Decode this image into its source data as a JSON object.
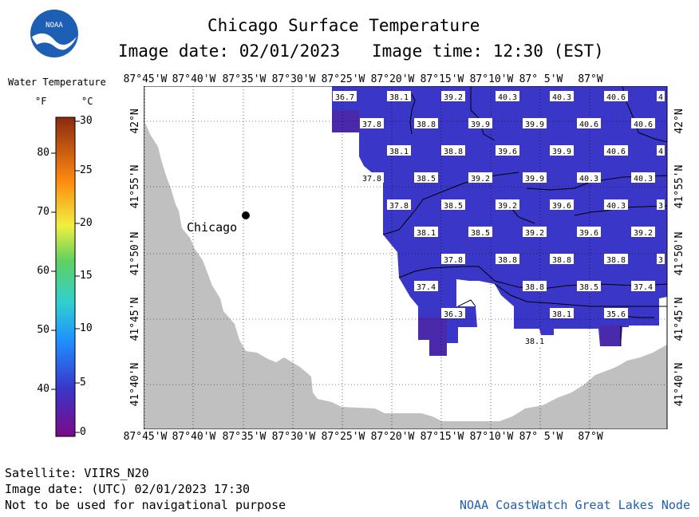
{
  "header": {
    "title": "Chicago Surface Temperature",
    "image_date": "Image date: 02/01/2023",
    "image_time": "Image time: 12:30 (EST)"
  },
  "logo": {
    "text": "NOAA"
  },
  "legend": {
    "title": "Water Temperature",
    "unit_f": "°F",
    "unit_c": "°C",
    "f_ticks": [
      "80",
      "70",
      "60",
      "50",
      "40"
    ],
    "c_ticks": [
      "30",
      "25",
      "20",
      "15",
      "10",
      "5",
      "0"
    ]
  },
  "axes": {
    "lon_labels": [
      "87°45'W",
      "87°40'W",
      "87°35'W",
      "87°30'W",
      "87°25'W",
      "87°20'W",
      "87°15'W",
      "87°10'W",
      "87° 5'W",
      "87°W"
    ],
    "lat_labels": [
      "42°N",
      "41°55'N",
      "41°50'N",
      "41°45'N",
      "41°40'N"
    ]
  },
  "city": {
    "name": "Chicago"
  },
  "colors": {
    "water": "#3a36c8",
    "water_deep": "#4a2aaa",
    "land": "#c0c0c0"
  },
  "temps": [
    {
      "v": "36.7"
    },
    {
      "v": "38.1"
    },
    {
      "v": "39.2"
    },
    {
      "v": "40.3"
    },
    {
      "v": "40.3"
    },
    {
      "v": "40.6"
    },
    {
      "v": "4"
    },
    {
      "v": "37.8"
    },
    {
      "v": "38.8"
    },
    {
      "v": "39.9"
    },
    {
      "v": "39.9"
    },
    {
      "v": "40.6"
    },
    {
      "v": "40.6"
    },
    {
      "v": "38.1"
    },
    {
      "v": "38.8"
    },
    {
      "v": "39.6"
    },
    {
      "v": "39.9"
    },
    {
      "v": "40.6"
    },
    {
      "v": "4"
    },
    {
      "v": "37.8"
    },
    {
      "v": "38.5"
    },
    {
      "v": "39.2"
    },
    {
      "v": "39.9"
    },
    {
      "v": "40.3"
    },
    {
      "v": "40.3"
    },
    {
      "v": "37.8"
    },
    {
      "v": "38.5"
    },
    {
      "v": "39.2"
    },
    {
      "v": "39.6"
    },
    {
      "v": "40.3"
    },
    {
      "v": "3"
    },
    {
      "v": "38.1"
    },
    {
      "v": "38.5"
    },
    {
      "v": "39.2"
    },
    {
      "v": "39.6"
    },
    {
      "v": "39.2"
    },
    {
      "v": "37.8"
    },
    {
      "v": "38.8"
    },
    {
      "v": "38.8"
    },
    {
      "v": "38.8"
    },
    {
      "v": "3"
    },
    {
      "v": "37.4"
    },
    {
      "v": "38.8"
    },
    {
      "v": "38.5"
    },
    {
      "v": "37.4"
    },
    {
      "v": "36.3"
    },
    {
      "v": "38.1"
    },
    {
      "v": "35.6"
    },
    {
      "v": "38.1"
    }
  ],
  "footer": {
    "satellite": "Satellite: VIIRS_N20",
    "utc_date": "Image date: (UTC) 02/01/2023  17:30",
    "disclaimer": "Not to be used for navigational purpose",
    "credit": "NOAA CoastWatch Great Lakes Node"
  }
}
